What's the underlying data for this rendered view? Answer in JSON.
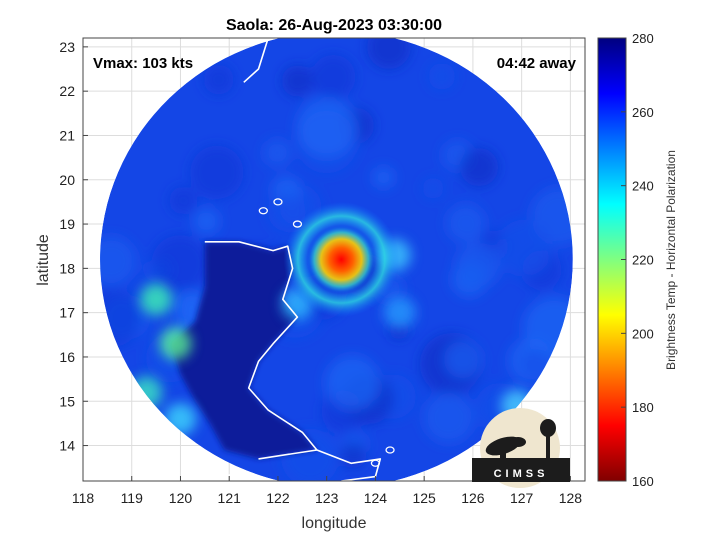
{
  "chart_data": {
    "type": "heatmap",
    "title": "Saola: 26-Aug-2023 03:30:00",
    "xlabel": "longitude",
    "ylabel": "latitude",
    "xlim": [
      118,
      128.3
    ],
    "ylim": [
      13.2,
      23.2
    ],
    "xticks": [
      118,
      119,
      120,
      121,
      122,
      123,
      124,
      125,
      126,
      127,
      128
    ],
    "yticks": [
      14,
      15,
      16,
      17,
      18,
      19,
      20,
      21,
      22,
      23
    ],
    "grid": true,
    "annotations": {
      "vmax": "Vmax: 103 kts",
      "time_away": "04:42 away"
    },
    "storm_center": {
      "lon": 123.3,
      "lat": 18.2
    },
    "colorbar": {
      "label": "Brightness Temp - Horizontal Polarization",
      "min": 160,
      "max": 280,
      "ticks": [
        160,
        180,
        200,
        220,
        240,
        260,
        280
      ]
    },
    "colormap": [
      "#800000",
      "#ff0000",
      "#ff8000",
      "#ffff00",
      "#80ff80",
      "#00ffff",
      "#0080ff",
      "#0000ff",
      "#000080"
    ],
    "swath": {
      "center_lon": 123.2,
      "center_lat": 18.2,
      "radius_deg_lon": 4.85,
      "radius_deg_lat": 5.15
    }
  },
  "logo": {
    "text": "CIMSS"
  }
}
